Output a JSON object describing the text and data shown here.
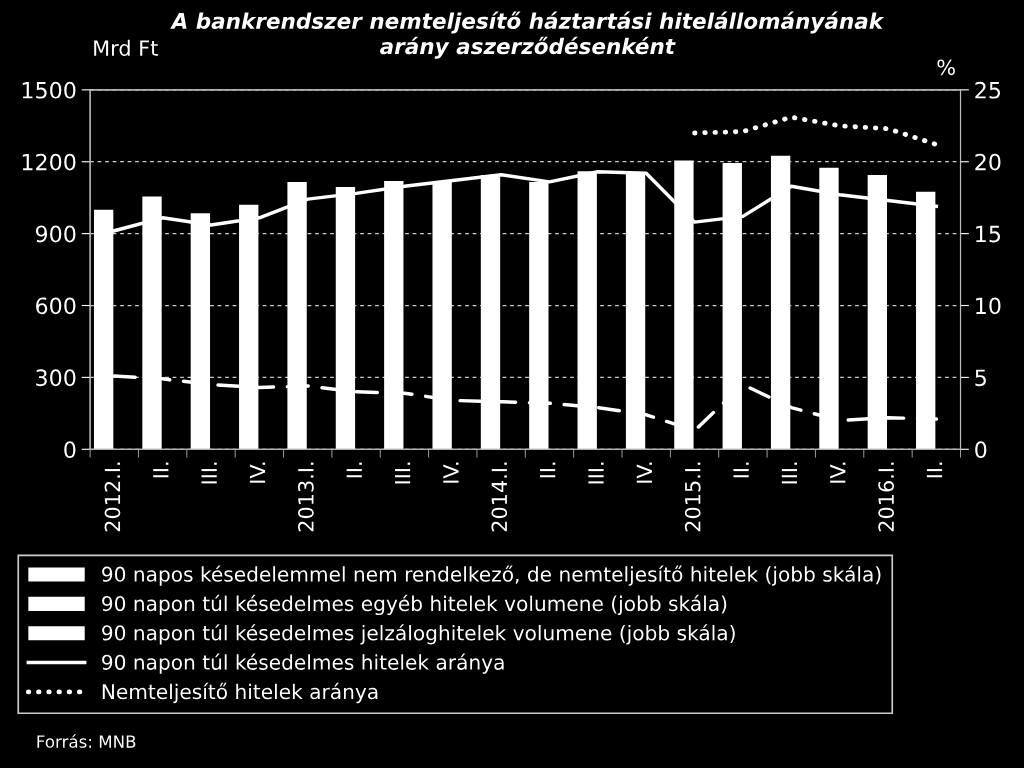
{
  "chart_data": {
    "type": "bar",
    "stacked": true,
    "title": "A bankrendszer nemteljesítő háztartási hitelállományának\narány aszerződésenként",
    "ylabel": "Mrd Ft",
    "y2label": "%",
    "categories": [
      "2012.I.",
      "II.",
      "III.",
      "IV.",
      "2013.I.",
      "II.",
      "III.",
      "IV.",
      "2014.I.",
      "II.",
      "III.",
      "IV.",
      "2015.I.",
      "II.",
      "III.",
      "IV.",
      "2016.I.",
      "II."
    ],
    "series": [
      {
        "name": "90 napos késedelemmel nem rendelkező, de nemteljesítő hitelek (jobb skála)",
        "color": "#ffffff",
        "values": [
          null,
          null,
          null,
          null,
          null,
          null,
          null,
          null,
          null,
          null,
          null,
          null,
          null,
          null,
          null,
          null,
          null,
          null
        ]
      },
      {
        "name": "90 napon túl késedelmes egyéb hitelek volumene (jobb skála)",
        "color": "#ffffff",
        "values": [
          null,
          null,
          null,
          null,
          null,
          null,
          null,
          null,
          null,
          null,
          null,
          null,
          null,
          null,
          null,
          null,
          null,
          null
        ]
      },
      {
        "name": "90 napon túl késedelmes jelzáloghitelek volumene (jobb skála)",
        "color": "#ffffff",
        "values": [
          1000,
          1055,
          985,
          1020,
          1115,
          1095,
          1120,
          1115,
          1145,
          1115,
          1160,
          1150,
          1205,
          1195,
          1225,
          1175,
          1145,
          1075
        ]
      },
      {
        "name": "90 napon túl késedelmes hitelek aránya",
        "type": "line",
        "axis": "y2",
        "color": "#ffffff",
        "line_style": "solid",
        "values": [
          15.2,
          16.1,
          15.6,
          16.1,
          17.4,
          17.8,
          18.3,
          18.7,
          19.1,
          18.6,
          19.3,
          19.2,
          15.8,
          16.2,
          18.3,
          17.7,
          17.3,
          16.9
        ]
      },
      {
        "name": "Nemteljesítő hitelek aránya",
        "type": "line",
        "axis": "y2",
        "color": "#ffffff",
        "line_style": "dotted",
        "values": [
          null,
          null,
          null,
          null,
          null,
          null,
          null,
          null,
          null,
          null,
          null,
          null,
          22.0,
          22.1,
          23.1,
          22.5,
          22.3,
          21.2
        ]
      },
      {
        "type": "line",
        "axis": "y2",
        "color": "#ffffff",
        "line_style": "dashed",
        "values": [
          5.1,
          4.9,
          4.5,
          4.3,
          4.4,
          4.0,
          3.9,
          3.4,
          3.3,
          3.2,
          2.9,
          2.4,
          1.3,
          4.5,
          2.9,
          2.0,
          2.2,
          2.1
        ]
      }
    ],
    "ylim": [
      0,
      1500
    ],
    "yticks": [
      0,
      300,
      600,
      900,
      1200,
      1500
    ],
    "y2lim": [
      0,
      25
    ],
    "y2ticks": [
      0,
      5,
      10,
      15,
      20,
      25
    ],
    "grid": "y",
    "legend": "bottom",
    "annotations": [
      "Forrás: MNB"
    ]
  }
}
